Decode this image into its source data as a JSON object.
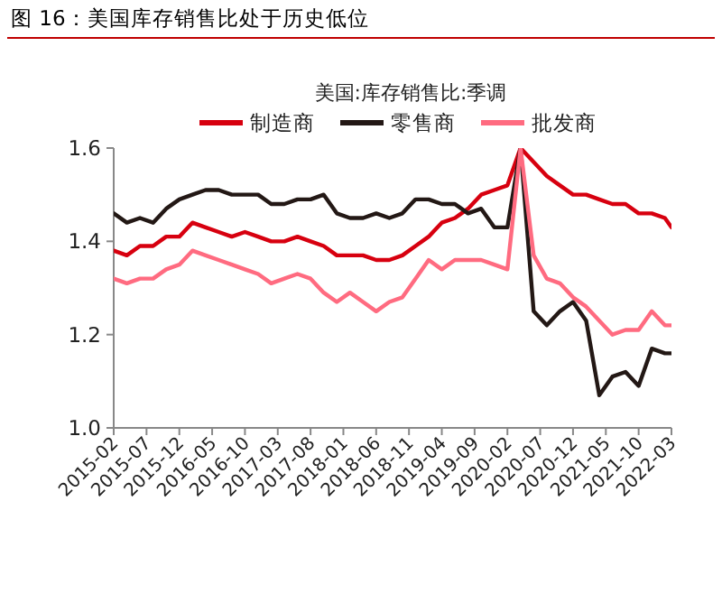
{
  "chart_data": {
    "type": "line",
    "title": "图 16：美国库存销售比处于历史低位",
    "subtitle": "美国:库存销售比:季调",
    "x": [
      "2015-02",
      "2015-04",
      "2015-06",
      "2015-08",
      "2015-10",
      "2015-12",
      "2016-02",
      "2016-04",
      "2016-06",
      "2016-08",
      "2016-10",
      "2016-12",
      "2017-02",
      "2017-04",
      "2017-06",
      "2017-08",
      "2017-10",
      "2017-12",
      "2018-02",
      "2018-04",
      "2018-06",
      "2018-08",
      "2018-10",
      "2018-12",
      "2019-02",
      "2019-04",
      "2019-06",
      "2019-08",
      "2019-10",
      "2019-12",
      "2020-02",
      "2020-04",
      "2020-06",
      "2020-08",
      "2020-10",
      "2020-12",
      "2021-02",
      "2021-04",
      "2021-06",
      "2021-08",
      "2021-10",
      "2021-12",
      "2022-02",
      "2022-03"
    ],
    "series": [
      {
        "name": "制造商",
        "color": "#d7000f",
        "values": [
          1.38,
          1.37,
          1.39,
          1.39,
          1.41,
          1.41,
          1.44,
          1.43,
          1.42,
          1.41,
          1.42,
          1.41,
          1.4,
          1.4,
          1.41,
          1.4,
          1.39,
          1.37,
          1.37,
          1.37,
          1.36,
          1.36,
          1.37,
          1.39,
          1.41,
          1.44,
          1.45,
          1.47,
          1.5,
          1.51,
          1.52,
          1.6,
          1.57,
          1.54,
          1.52,
          1.5,
          1.5,
          1.49,
          1.48,
          1.48,
          1.46,
          1.46,
          1.45,
          1.43
        ]
      },
      {
        "name": "零售商",
        "color": "#231815",
        "values": [
          1.46,
          1.44,
          1.45,
          1.44,
          1.47,
          1.49,
          1.5,
          1.51,
          1.51,
          1.5,
          1.5,
          1.5,
          1.48,
          1.48,
          1.49,
          1.49,
          1.5,
          1.46,
          1.45,
          1.45,
          1.46,
          1.45,
          1.46,
          1.49,
          1.49,
          1.48,
          1.48,
          1.46,
          1.47,
          1.43,
          1.43,
          1.6,
          1.25,
          1.22,
          1.25,
          1.27,
          1.23,
          1.07,
          1.11,
          1.12,
          1.09,
          1.17,
          1.16,
          1.16
        ]
      },
      {
        "name": "批发商",
        "color": "#ff6b80",
        "values": [
          1.32,
          1.31,
          1.32,
          1.32,
          1.34,
          1.35,
          1.38,
          1.37,
          1.36,
          1.35,
          1.34,
          1.33,
          1.31,
          1.32,
          1.33,
          1.32,
          1.29,
          1.27,
          1.29,
          1.27,
          1.25,
          1.27,
          1.28,
          1.32,
          1.36,
          1.34,
          1.36,
          1.36,
          1.36,
          1.35,
          1.34,
          1.6,
          1.37,
          1.32,
          1.31,
          1.28,
          1.26,
          1.23,
          1.2,
          1.21,
          1.21,
          1.25,
          1.22,
          1.22
        ]
      }
    ],
    "xlim": [
      "2015-02",
      "2022-03"
    ],
    "xticks": [
      "2015-02",
      "2015-07",
      "2015-12",
      "2016-05",
      "2016-10",
      "2017-03",
      "2017-08",
      "2018-01",
      "2018-06",
      "2018-11",
      "2019-04",
      "2019-09",
      "2020-02",
      "2020-07",
      "2020-12",
      "2021-05",
      "2021-10",
      "2022-03"
    ],
    "ylim": [
      1.0,
      1.6
    ],
    "yticks": [
      {
        "value": 1.0,
        "label": "1.0"
      },
      1.2,
      1.4,
      1.6
    ],
    "legend": "top",
    "grid": false,
    "marker": "none",
    "line_style": "solid"
  }
}
